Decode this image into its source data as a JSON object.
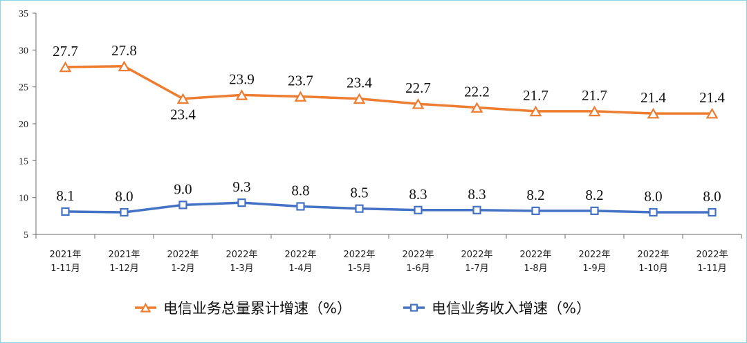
{
  "chart_data": {
    "type": "line",
    "categories": [
      [
        "2021年",
        "1-11月"
      ],
      [
        "2021年",
        "1-12月"
      ],
      [
        "2022年",
        "1-2月"
      ],
      [
        "2022年",
        "1-3月"
      ],
      [
        "2022年",
        "1-4月"
      ],
      [
        "2022年",
        "1-5月"
      ],
      [
        "2022年",
        "1-6月"
      ],
      [
        "2022年",
        "1-7月"
      ],
      [
        "2022年",
        "1-8月"
      ],
      [
        "2022年",
        "1-9月"
      ],
      [
        "2022年",
        "1-10月"
      ],
      [
        "2022年",
        "1-11月"
      ]
    ],
    "series": [
      {
        "name": "电信业务总量累计增速（%）",
        "color": "#ed7d31",
        "marker": "triangle",
        "values": [
          27.7,
          27.8,
          23.4,
          23.9,
          23.7,
          23.4,
          22.7,
          22.2,
          21.7,
          21.7,
          21.4,
          21.4
        ],
        "labels": [
          "27.7",
          "27.8",
          "23.4",
          "23.9",
          "23.7",
          "23.4",
          "22.7",
          "22.2",
          "21.7",
          "21.7",
          "21.4",
          "21.4"
        ]
      },
      {
        "name": "电信业务收入增速（%）",
        "color": "#4472c4",
        "marker": "square",
        "values": [
          8.1,
          8.0,
          9.0,
          9.3,
          8.8,
          8.5,
          8.3,
          8.3,
          8.2,
          8.2,
          8.0,
          8.0
        ],
        "labels": [
          "8.1",
          "8.0",
          "9.0",
          "9.3",
          "8.8",
          "8.5",
          "8.3",
          "8.3",
          "8.2",
          "8.2",
          "8.0",
          "8.0"
        ]
      }
    ],
    "yticks": [
      "5",
      "10",
      "15",
      "20",
      "25",
      "30",
      "35"
    ],
    "ylim": [
      5,
      35
    ],
    "grid": false,
    "legend_position": "bottom",
    "title": "",
    "xlabel": "",
    "ylabel": ""
  }
}
